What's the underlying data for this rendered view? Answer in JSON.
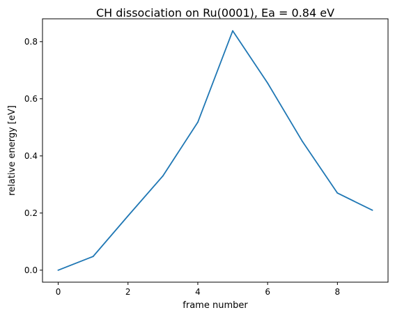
{
  "chart_data": {
    "type": "line",
    "title": "CH dissociation on Ru(0001), Ea = 0.84 eV",
    "xlabel": "frame number",
    "ylabel": "relative energy [eV]",
    "x": [
      0,
      1,
      2,
      3,
      4,
      5,
      6,
      7,
      8,
      9
    ],
    "series": [
      {
        "values": [
          0.0,
          0.048,
          0.19,
          0.33,
          0.518,
          0.838,
          0.655,
          0.45,
          0.27,
          0.21
        ],
        "color": "#1f77b4"
      }
    ],
    "xlim": [
      -0.45,
      9.45
    ],
    "ylim": [
      -0.042,
      0.88
    ],
    "xticks": [
      0,
      2,
      4,
      6,
      8
    ],
    "xtick_labels": [
      "0",
      "2",
      "4",
      "6",
      "8"
    ],
    "yticks": [
      0.0,
      0.2,
      0.4,
      0.6,
      0.8
    ],
    "ytick_labels": [
      "0.0",
      "0.2",
      "0.4",
      "0.6",
      "0.8"
    ],
    "grid": false,
    "legend": "none"
  }
}
